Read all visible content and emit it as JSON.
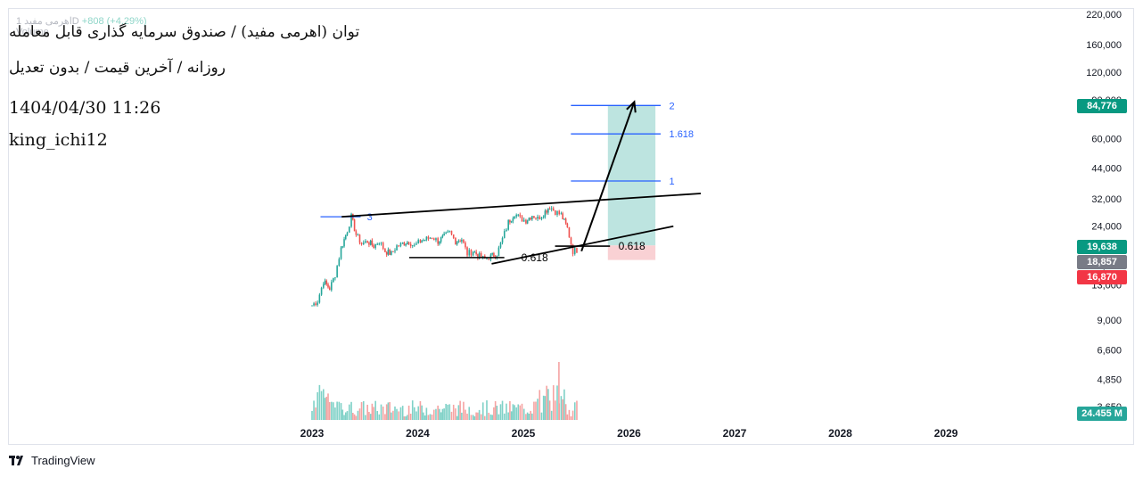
{
  "header": {
    "title_line1": "توان (اهرمی مفید) / صندوق سرمایه گذاری قابل معامله",
    "title_line2": "روزانه / آخرین قیمت / بدون تعدیل",
    "datetime": "1404/04/30 11:26",
    "author": "king_ichi12",
    "ghost_symbol": "اهرمی مفید 1D",
    "ghost_change": "+808 (+4.29%)",
    "ghost_volume": "Volume"
  },
  "footer": {
    "brand": "TradingView"
  },
  "colors": {
    "up": "#26a69a",
    "down": "#ef5350",
    "badge_green": "#089981",
    "badge_red": "#f23645",
    "badge_gray": "#787b86",
    "fib_blue": "#2962ff",
    "target_zone": "#b2dfdb",
    "stop_zone": "#f8c9cc"
  },
  "chart_data": {
    "type": "candlestick",
    "scale": "log",
    "y_ticks": [
      "220,000",
      "160,000",
      "120,000",
      "90,000",
      "60,000",
      "44,000",
      "32,000",
      "24,000",
      "16,000",
      "13,000",
      "9,000",
      "6,600",
      "4,850",
      "3,650"
    ],
    "y_tick_values": [
      220000,
      160000,
      120000,
      90000,
      60000,
      44000,
      32000,
      24000,
      16000,
      13000,
      9000,
      6600,
      4850,
      3650
    ],
    "x_ticks": [
      "2023",
      "2024",
      "2025",
      "2026",
      "2027",
      "2028",
      "2029"
    ],
    "price_labels": {
      "target": "84,776",
      "entry": "19,638",
      "last": "18,857",
      "stop": "16,870",
      "volume": "24.455 M"
    },
    "price_series": [
      [
        "2023-01-01",
        10500
      ],
      [
        "2023-01-20",
        11000
      ],
      [
        "2023-02-10",
        13500
      ],
      [
        "2023-03-01",
        12500
      ],
      [
        "2023-03-20",
        14500
      ],
      [
        "2023-04-10",
        19000
      ],
      [
        "2023-05-01",
        23000
      ],
      [
        "2023-05-15",
        26500
      ],
      [
        "2023-06-01",
        22000
      ],
      [
        "2023-06-20",
        20000
      ],
      [
        "2023-07-10",
        20500
      ],
      [
        "2023-08-01",
        19500
      ],
      [
        "2023-08-20",
        20500
      ],
      [
        "2023-09-10",
        18500
      ],
      [
        "2023-10-01",
        18000
      ],
      [
        "2023-10-20",
        19500
      ],
      [
        "2023-11-10",
        20000
      ],
      [
        "2023-12-01",
        20500
      ],
      [
        "2023-12-20",
        19500
      ],
      [
        "2024-01-10",
        20500
      ],
      [
        "2024-02-01",
        21000
      ],
      [
        "2024-02-20",
        21500
      ],
      [
        "2024-03-10",
        20500
      ],
      [
        "2024-04-01",
        21500
      ],
      [
        "2024-04-20",
        22500
      ],
      [
        "2024-05-10",
        20500
      ],
      [
        "2024-06-01",
        21000
      ],
      [
        "2024-06-20",
        18000
      ],
      [
        "2024-07-10",
        18500
      ],
      [
        "2024-08-01",
        17500
      ],
      [
        "2024-08-20",
        17000
      ],
      [
        "2024-09-10",
        17500
      ],
      [
        "2024-10-01",
        18000
      ],
      [
        "2024-10-20",
        21000
      ],
      [
        "2024-11-10",
        25000
      ],
      [
        "2024-12-01",
        27500
      ],
      [
        "2024-12-20",
        26000
      ],
      [
        "2025-01-10",
        25500
      ],
      [
        "2025-02-01",
        27000
      ],
      [
        "2025-02-20",
        26000
      ],
      [
        "2025-03-10",
        27500
      ],
      [
        "2025-04-01",
        29500
      ],
      [
        "2025-04-20",
        28000
      ],
      [
        "2025-05-10",
        27000
      ],
      [
        "2025-06-01",
        23500
      ],
      [
        "2025-06-20",
        18500
      ],
      [
        "2025-07-10",
        18857
      ]
    ],
    "drawings": {
      "fib_levels": [
        {
          "label": "3",
          "price": 26500
        },
        {
          "label": "2",
          "price": 84776
        },
        {
          "label": "1.618",
          "price": 63000
        },
        {
          "label": "1",
          "price": 38500
        }
      ],
      "retracement_labels": [
        "0.618",
        "0.618"
      ],
      "support_line_prices": [
        16200,
        24000
      ],
      "resistance_line_prices": [
        26500,
        33800
      ]
    }
  }
}
